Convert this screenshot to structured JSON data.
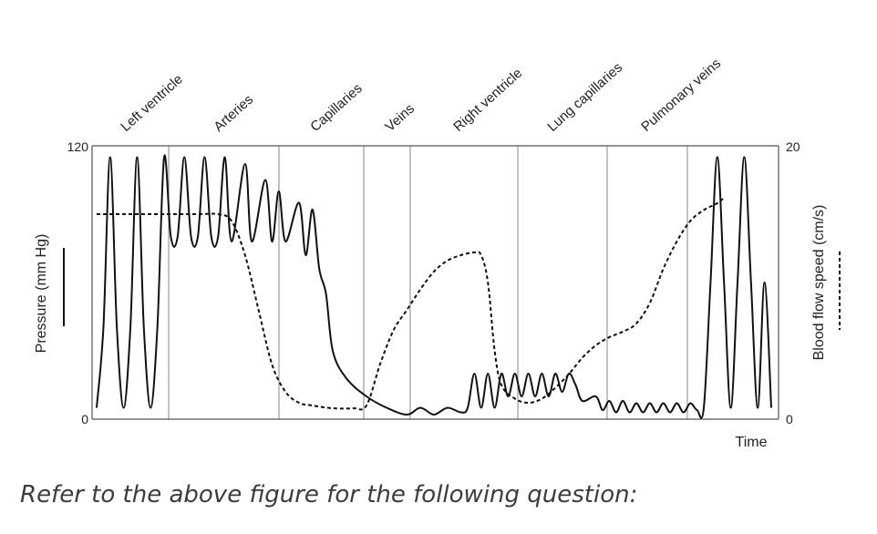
{
  "caption": "Refer to the above figure for the following question:",
  "chart_data": {
    "type": "line",
    "regions": [
      "Left ventricle",
      "Arteries",
      "Capillaries",
      "Veins",
      "Right ventricle",
      "Lung capillaries",
      "Pulmonary veins"
    ],
    "xlabel": "Time",
    "ylabel_left": "Pressure (mm Hg)",
    "ylabel_right": "Blood flow speed (cm/s)",
    "left_axis": {
      "min": 0,
      "max": 120,
      "ticks": [
        "0",
        "120"
      ]
    },
    "right_axis": {
      "min": 0,
      "max": 20,
      "ticks": [
        "0",
        "20"
      ]
    },
    "grid": "vertical lines at region boundaries",
    "series": [
      {
        "name": "Pressure (mm Hg)",
        "style": "solid",
        "points": [
          [
            0.0,
            5
          ],
          [
            0.01,
            40
          ],
          [
            0.02,
            115
          ],
          [
            0.03,
            40
          ],
          [
            0.04,
            5
          ],
          [
            0.05,
            40
          ],
          [
            0.06,
            115
          ],
          [
            0.07,
            40
          ],
          [
            0.08,
            5
          ],
          [
            0.09,
            40
          ],
          [
            0.1,
            115
          ],
          [
            0.11,
            80
          ],
          [
            0.12,
            80
          ],
          [
            0.13,
            115
          ],
          [
            0.14,
            80
          ],
          [
            0.15,
            80
          ],
          [
            0.16,
            115
          ],
          [
            0.17,
            80
          ],
          [
            0.18,
            80
          ],
          [
            0.19,
            115
          ],
          [
            0.2,
            78
          ],
          [
            0.22,
            112
          ],
          [
            0.23,
            78
          ],
          [
            0.25,
            105
          ],
          [
            0.26,
            78
          ],
          [
            0.27,
            100
          ],
          [
            0.28,
            78
          ],
          [
            0.3,
            95
          ],
          [
            0.31,
            72
          ],
          [
            0.32,
            92
          ],
          [
            0.33,
            66
          ],
          [
            0.34,
            55
          ],
          [
            0.35,
            30
          ],
          [
            0.37,
            18
          ],
          [
            0.4,
            10
          ],
          [
            0.43,
            5
          ],
          [
            0.46,
            2
          ],
          [
            0.48,
            5
          ],
          [
            0.5,
            2
          ],
          [
            0.52,
            5
          ],
          [
            0.54,
            3
          ],
          [
            0.55,
            5
          ],
          [
            0.56,
            20
          ],
          [
            0.57,
            5
          ],
          [
            0.58,
            20
          ],
          [
            0.59,
            5
          ],
          [
            0.6,
            20
          ],
          [
            0.61,
            10
          ],
          [
            0.62,
            20
          ],
          [
            0.63,
            10
          ],
          [
            0.64,
            20
          ],
          [
            0.65,
            10
          ],
          [
            0.66,
            20
          ],
          [
            0.67,
            10
          ],
          [
            0.68,
            20
          ],
          [
            0.69,
            12
          ],
          [
            0.7,
            20
          ],
          [
            0.71,
            15
          ],
          [
            0.72,
            8
          ],
          [
            0.74,
            10
          ],
          [
            0.75,
            4
          ],
          [
            0.76,
            8
          ],
          [
            0.77,
            3
          ],
          [
            0.78,
            8
          ],
          [
            0.79,
            3
          ],
          [
            0.8,
            7
          ],
          [
            0.81,
            3
          ],
          [
            0.82,
            7
          ],
          [
            0.83,
            3
          ],
          [
            0.84,
            7
          ],
          [
            0.85,
            3
          ],
          [
            0.86,
            7
          ],
          [
            0.87,
            3
          ],
          [
            0.88,
            7
          ],
          [
            0.89,
            4
          ],
          [
            0.9,
            5
          ],
          [
            0.91,
            60
          ],
          [
            0.92,
            115
          ],
          [
            0.93,
            60
          ],
          [
            0.94,
            5
          ],
          [
            0.95,
            60
          ],
          [
            0.96,
            115
          ],
          [
            0.97,
            60
          ],
          [
            0.98,
            5
          ],
          [
            0.99,
            60
          ],
          [
            1.0,
            5
          ]
        ]
      },
      {
        "name": "Blood flow speed (cm/s)",
        "style": "dashed",
        "points": [
          [
            0.0,
            15
          ],
          [
            0.05,
            15
          ],
          [
            0.1,
            15
          ],
          [
            0.15,
            15
          ],
          [
            0.18,
            15
          ],
          [
            0.2,
            14.5
          ],
          [
            0.22,
            12
          ],
          [
            0.24,
            8
          ],
          [
            0.26,
            4
          ],
          [
            0.28,
            2
          ],
          [
            0.3,
            1.2
          ],
          [
            0.32,
            1
          ],
          [
            0.35,
            0.8
          ],
          [
            0.38,
            0.8
          ],
          [
            0.4,
            1
          ],
          [
            0.42,
            4
          ],
          [
            0.44,
            6.5
          ],
          [
            0.46,
            8
          ],
          [
            0.48,
            9.5
          ],
          [
            0.5,
            10.8
          ],
          [
            0.52,
            11.6
          ],
          [
            0.54,
            12
          ],
          [
            0.56,
            12.2
          ],
          [
            0.57,
            12
          ],
          [
            0.58,
            10
          ],
          [
            0.59,
            5
          ],
          [
            0.6,
            2.5
          ],
          [
            0.62,
            1.5
          ],
          [
            0.64,
            1.2
          ],
          [
            0.66,
            1.5
          ],
          [
            0.68,
            2.3
          ],
          [
            0.7,
            3.3
          ],
          [
            0.72,
            4.5
          ],
          [
            0.74,
            5.4
          ],
          [
            0.76,
            6
          ],
          [
            0.78,
            6.4
          ],
          [
            0.8,
            7
          ],
          [
            0.82,
            8.5
          ],
          [
            0.84,
            11
          ],
          [
            0.86,
            13
          ],
          [
            0.88,
            14.5
          ],
          [
            0.9,
            15.3
          ],
          [
            0.92,
            15.8
          ],
          [
            0.93,
            16.2
          ]
        ]
      }
    ]
  }
}
